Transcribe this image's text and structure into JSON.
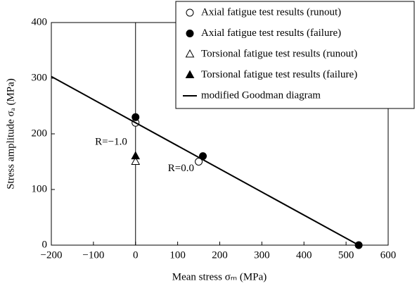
{
  "chart_data": {
    "type": "scatter",
    "xlabel": "Mean stress σₘ (MPa)",
    "ylabel": "Stress amplitude σₐ (MPa)",
    "xlim": [
      -200,
      600
    ],
    "ylim": [
      0,
      400
    ],
    "xticks": [
      {
        "value": -200,
        "label": "−200"
      },
      {
        "value": -100,
        "label": "−100"
      },
      0,
      100,
      200,
      300,
      400,
      500,
      600
    ],
    "yticks": [
      0,
      100,
      200,
      300,
      400
    ],
    "legend": "upper right",
    "annotations": [
      {
        "text": "R=−1.0",
        "x": -58,
        "y": 185
      },
      {
        "text": "R=0.0",
        "x": 108,
        "y": 137
      }
    ],
    "series": [
      {
        "name": "Axial fatigue test results (runout)",
        "type": "scatter",
        "marker": "circle",
        "filled": false,
        "color": "#000000",
        "x": [
          0,
          150
        ],
        "values": [
          220,
          150
        ]
      },
      {
        "name": "Axial fatigue test results (failure)",
        "type": "scatter",
        "marker": "circle",
        "filled": true,
        "color": "#000000",
        "x": [
          0,
          160,
          530
        ],
        "values": [
          230,
          160,
          0
        ]
      },
      {
        "name": "Torsional fatigue test results (runout)",
        "type": "scatter",
        "marker": "triangle",
        "filled": false,
        "color": "#000000",
        "x": [
          0
        ],
        "values": [
          150
        ]
      },
      {
        "name": "Torsional fatigue test results (failure)",
        "type": "scatter",
        "marker": "triangle",
        "filled": true,
        "color": "#000000",
        "x": [
          0
        ],
        "values": [
          160
        ]
      },
      {
        "name": "modified Goodman diagram",
        "type": "line",
        "color": "#000000",
        "x": [
          -200,
          530
        ],
        "values": [
          303,
          0
        ]
      }
    ]
  }
}
